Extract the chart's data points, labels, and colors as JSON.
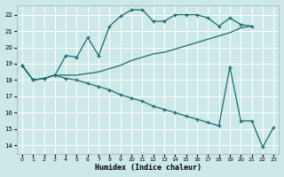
{
  "xlabel": "Humidex (Indice chaleur)",
  "bg_color": "#cce8e8",
  "grid_color": "#ffffff",
  "line_color": "#1a6b6b",
  "xlim": [
    -0.5,
    23.5
  ],
  "ylim": [
    13.5,
    22.6
  ],
  "yticks": [
    14,
    15,
    16,
    17,
    18,
    19,
    20,
    21,
    22
  ],
  "xticks": [
    0,
    1,
    2,
    3,
    4,
    5,
    6,
    7,
    8,
    9,
    10,
    11,
    12,
    13,
    14,
    15,
    16,
    17,
    18,
    19,
    20,
    21,
    22,
    23
  ],
  "line1_x": [
    0,
    1,
    2,
    3,
    4,
    5,
    6,
    7,
    8,
    9,
    10,
    11,
    12,
    13,
    14,
    15,
    16,
    17,
    18,
    19,
    20,
    21
  ],
  "line1_y": [
    18.9,
    18.0,
    18.1,
    18.3,
    19.5,
    19.4,
    20.6,
    19.5,
    21.3,
    21.9,
    22.3,
    22.3,
    21.6,
    21.6,
    22.0,
    22.0,
    22.0,
    21.8,
    21.3,
    21.8,
    21.4,
    21.3
  ],
  "line2_x": [
    0,
    1,
    2,
    3,
    4,
    5,
    6,
    7,
    8,
    9,
    10,
    11,
    12,
    13,
    14,
    15,
    16,
    17,
    18,
    19,
    20,
    21
  ],
  "line2_y": [
    18.9,
    18.0,
    18.1,
    18.3,
    18.3,
    18.3,
    18.4,
    18.5,
    18.7,
    18.9,
    19.2,
    19.4,
    19.6,
    19.7,
    19.9,
    20.1,
    20.3,
    20.5,
    20.7,
    20.9,
    21.2,
    21.3
  ],
  "line3_x": [
    0,
    1,
    2,
    3,
    4,
    5,
    6,
    7,
    8,
    9,
    10,
    11,
    12,
    13,
    14,
    15,
    16,
    17,
    18,
    19,
    20,
    21,
    22,
    23
  ],
  "line3_y": [
    18.9,
    18.0,
    18.1,
    18.3,
    18.1,
    18.0,
    17.8,
    17.6,
    17.4,
    17.1,
    16.9,
    16.7,
    16.4,
    16.2,
    16.0,
    15.8,
    15.6,
    15.4,
    15.2,
    18.8,
    15.5,
    15.5,
    13.9,
    15.1
  ]
}
